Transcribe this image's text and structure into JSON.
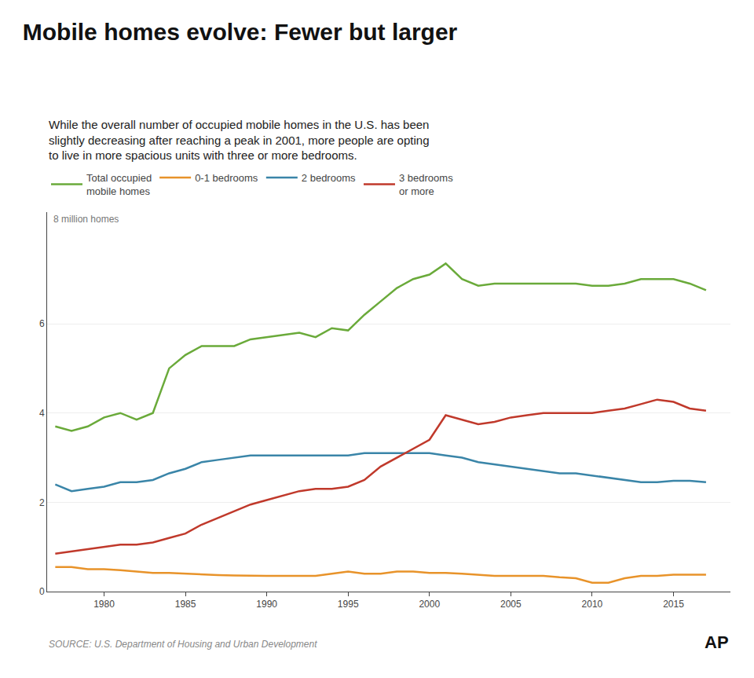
{
  "chart_data": {
    "type": "line",
    "title": "Mobile homes evolve: Fewer but larger",
    "subtitle": "While the overall number of occupied mobile homes in the U.S. has been\nslightly decreasing after reaching a peak in 2001, more people are opting\nto live in more spacious units with three or more bedrooms.",
    "ylabel": "8 million homes",
    "annotations": [
      "SOURCE: U.S. Department of Housing and Urban Development",
      "AP"
    ],
    "x": [
      1977,
      1978,
      1979,
      1980,
      1981,
      1982,
      1983,
      1984,
      1985,
      1986,
      1987,
      1988,
      1989,
      1990,
      1991,
      1992,
      1993,
      1994,
      1995,
      1996,
      1997,
      1998,
      1999,
      2000,
      2001,
      2002,
      2003,
      2004,
      2005,
      2006,
      2007,
      2008,
      2009,
      2010,
      2011,
      2012,
      2013,
      2014,
      2015,
      2016,
      2017
    ],
    "series": [
      {
        "name": "Total occupied\nmobile homes",
        "color": "#6aaa3a",
        "values": [
          3.7,
          3.6,
          3.7,
          3.9,
          4.0,
          3.85,
          4.0,
          5.0,
          5.3,
          5.5,
          5.5,
          5.5,
          5.65,
          5.7,
          5.75,
          5.8,
          5.7,
          5.9,
          5.85,
          6.2,
          6.5,
          6.8,
          7.0,
          7.1,
          7.35,
          7.0,
          6.85,
          6.9,
          6.9,
          6.9,
          6.9,
          6.9,
          6.9,
          6.85,
          6.85,
          6.9,
          7.0,
          7.0,
          7.0,
          6.9,
          6.75
        ]
      },
      {
        "name": "0-1 bedrooms",
        "color": "#e8932a",
        "values": [
          0.55,
          0.55,
          0.5,
          0.5,
          0.48,
          0.45,
          0.42,
          0.42,
          0.4,
          0.38,
          0.37,
          0.36,
          0.35,
          0.35,
          0.35,
          0.35,
          0.35,
          0.4,
          0.45,
          0.4,
          0.4,
          0.45,
          0.45,
          0.42,
          0.42,
          0.4,
          0.38,
          0.35,
          0.35,
          0.35,
          0.35,
          0.32,
          0.3,
          0.2,
          0.2,
          0.3,
          0.35,
          0.35,
          0.38,
          0.38,
          0.38
        ]
      },
      {
        "name": "2 bedrooms",
        "color": "#3a85a8",
        "values": [
          2.4,
          2.25,
          2.3,
          2.35,
          2.45,
          2.45,
          2.5,
          2.65,
          2.75,
          2.9,
          2.95,
          3.0,
          3.05,
          3.05,
          3.05,
          3.05,
          3.05,
          3.05,
          3.05,
          3.1,
          3.1,
          3.1,
          3.1,
          3.1,
          3.05,
          3.0,
          2.9,
          2.85,
          2.8,
          2.75,
          2.7,
          2.65,
          2.65,
          2.6,
          2.55,
          2.5,
          2.45,
          2.45,
          2.48,
          2.48,
          2.45
        ]
      },
      {
        "name": "3 bedrooms\nor more",
        "color": "#c0392b",
        "values": [
          0.85,
          0.9,
          0.95,
          1.0,
          1.05,
          1.05,
          1.1,
          1.2,
          1.3,
          1.5,
          1.65,
          1.8,
          1.95,
          2.05,
          2.15,
          2.25,
          2.3,
          2.3,
          2.35,
          2.5,
          2.8,
          3.0,
          3.2,
          3.4,
          3.95,
          3.85,
          3.75,
          3.8,
          3.9,
          3.95,
          4.0,
          4.0,
          4.0,
          4.0,
          4.05,
          4.1,
          4.2,
          4.3,
          4.25,
          4.1,
          4.05
        ]
      }
    ],
    "xlim": [
      1976.5,
      2018.5
    ],
    "xticks": [
      1980,
      1985,
      1990,
      1995,
      2000,
      2005,
      2010,
      2015
    ],
    "ylim": [
      0,
      8.5
    ],
    "yticks": [
      0,
      2,
      4,
      6
    ],
    "grid": true,
    "legend": "top left"
  }
}
